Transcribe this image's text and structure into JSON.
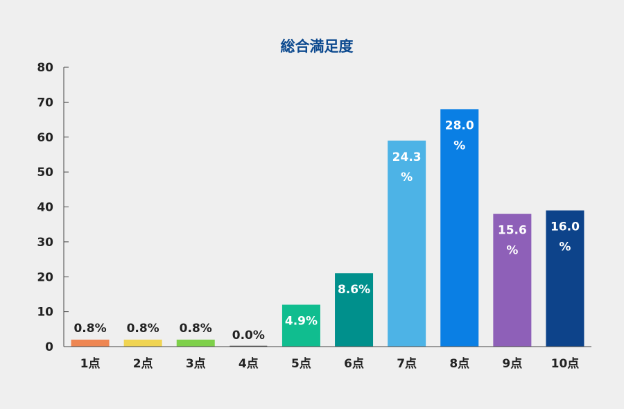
{
  "chart_data": {
    "type": "bar",
    "title": "総合満足度",
    "xlabel": "",
    "ylabel": "",
    "ylim": [
      0,
      80
    ],
    "yticks": [
      0,
      10,
      20,
      30,
      40,
      50,
      60,
      70,
      80
    ],
    "grid": false,
    "categories": [
      "1点",
      "2点",
      "3点",
      "4点",
      "5点",
      "6点",
      "7点",
      "8点",
      "9点",
      "10点"
    ],
    "values": [
      2,
      2,
      2,
      0,
      12,
      21,
      59,
      68,
      38,
      39
    ],
    "labels": [
      "0.8%",
      "0.8%",
      "0.8%",
      "0.0%",
      "4.9%",
      "8.6%",
      "24.3\n%",
      "28.0\n%",
      "15.6\n%",
      "16.0\n%"
    ],
    "colors": [
      "#ee8652",
      "#f0d452",
      "#7ed04a",
      "#444444",
      "#10bd8f",
      "#00908c",
      "#4db3e6",
      "#0a7fe4",
      "#8e60b8",
      "#0d438a"
    ]
  }
}
